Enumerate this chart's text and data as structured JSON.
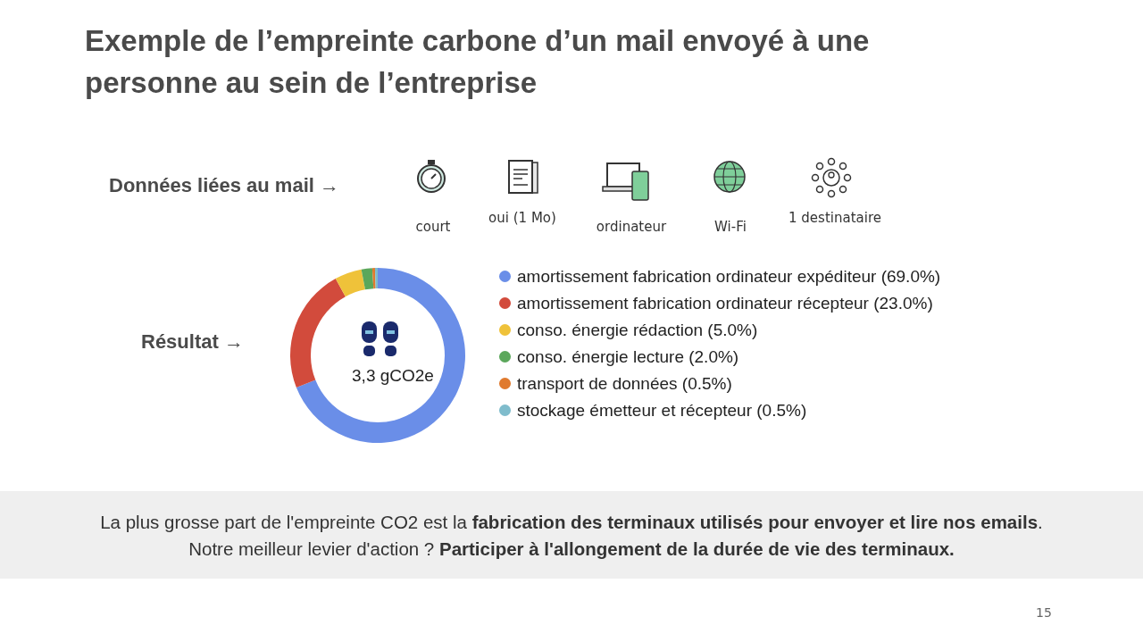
{
  "chart_data": {
    "type": "donut",
    "title": "Exemple de l’empreinte carbone d’un mail envoyé à une personne au sein de l’entreprise",
    "categories": [
      "amortissement fabrication ordinateur expéditeur (69.0%)",
      "amortissement fabrication ordinateur récepteur (23.0%)",
      "conso. énergie rédaction (5.0%)",
      "conso. énergie lecture (2.0%)",
      "transport de données (0.5%)",
      "stockage émetteur et récepteur (0.5%)"
    ],
    "values": [
      69,
      23,
      5,
      2,
      0.5,
      0.5
    ],
    "colors": [
      "#6a8ee8",
      "#d24b3c",
      "#efc23a",
      "#5ba75b",
      "#e07a2e",
      "#7fbccc"
    ],
    "legend": "right",
    "annotations": [
      "Données liées au mail →",
      "court",
      "oui (1 Mo)",
      "ordinateur",
      "Wi-Fi",
      "1 destinataire",
      "Résultat →",
      "3,3 gCO2e",
      "La plus grosse part de l'empreinte CO2 est la ",
      "fabrication des terminaux utilisés pour envoyer et lire nos emails",
      ".",
      "Notre meilleur levier d'action ? ",
      "Participer à l'allongement de la durée de vie des terminaux.",
      "15"
    ]
  }
}
